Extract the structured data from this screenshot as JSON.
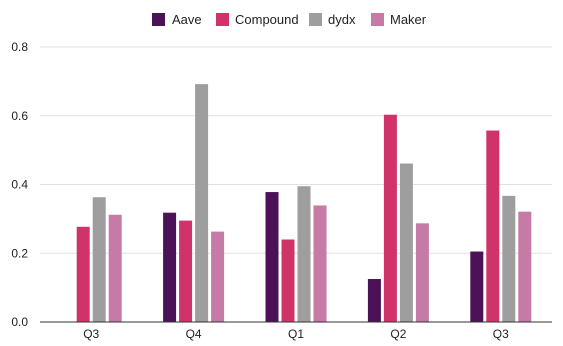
{
  "chart_data": {
    "type": "bar",
    "categories": [
      "Q3",
      "Q4",
      "Q1",
      "Q2",
      "Q3"
    ],
    "series": [
      {
        "name": "Aave",
        "color": "#4b1258",
        "values": [
          0,
          0.318,
          0.378,
          0.125,
          0.205
        ]
      },
      {
        "name": "Compound",
        "color": "#d0336a",
        "values": [
          0.277,
          0.295,
          0.24,
          0.603,
          0.557
        ]
      },
      {
        "name": "dydx",
        "color": "#9e9e9e",
        "values": [
          0.363,
          0.692,
          0.395,
          0.461,
          0.367
        ]
      },
      {
        "name": "Maker",
        "color": "#c67aa6",
        "values": [
          0.312,
          0.263,
          0.339,
          0.287,
          0.321
        ]
      }
    ],
    "yticks": [
      "0.0",
      "0.2",
      "0.4",
      "0.6",
      "0.8"
    ],
    "ylim": [
      0,
      0.8
    ],
    "grid": true,
    "legend_position": "top-center",
    "title": "",
    "xlabel": "",
    "ylabel": ""
  }
}
